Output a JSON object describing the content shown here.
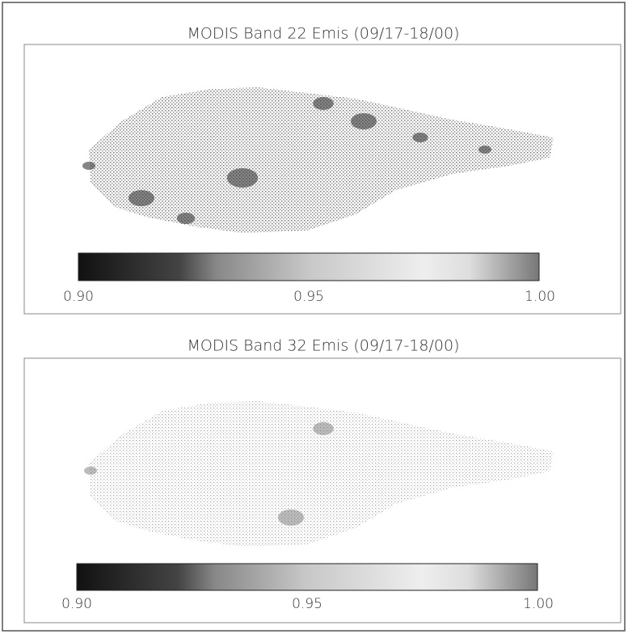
{
  "panels": [
    {
      "title": "MODIS Band 22 Emis (09/17-18/00)",
      "colorbar_ticks": [
        {
          "value": 0.9,
          "label": "0.90"
        },
        {
          "value": 0.95,
          "label": "0.95"
        },
        {
          "value": 1.0,
          "label": "1.00"
        }
      ]
    },
    {
      "title": "MODIS Band 32 Emis (09/17-18/00)",
      "colorbar_ticks": [
        {
          "value": 0.9,
          "label": "0.90"
        },
        {
          "value": 0.95,
          "label": "0.95"
        },
        {
          "value": 1.0,
          "label": "1.00"
        }
      ]
    }
  ]
}
